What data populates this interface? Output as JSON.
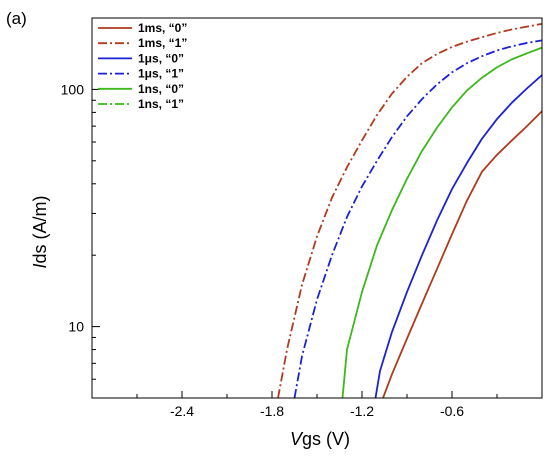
{
  "panel_label": "(a)",
  "chart_data": {
    "type": "line",
    "xlabel": {
      "italic": "V",
      "rest": "gs (V)"
    },
    "ylabel": {
      "italic": "I",
      "rest": "ds (A/m)"
    },
    "xlim": [
      -3.0,
      0.0
    ],
    "ylim": [
      5,
      200
    ],
    "yscale": "log",
    "grid": false,
    "legend_position": "top-left",
    "x_ticks": [
      -2.4,
      -1.8,
      -1.2,
      -0.6
    ],
    "x_tick_labels": [
      "-2.4",
      "-1.8",
      "-1.2",
      "-0.6"
    ],
    "y_ticks": [
      10,
      100
    ],
    "y_tick_labels": [
      "10",
      "100"
    ],
    "series": [
      {
        "name": "1ms, “0”",
        "color": "#b03a1e",
        "dash": "solid",
        "x": [
          -1.06,
          -1.0,
          -0.9,
          -0.8,
          -0.7,
          -0.6,
          -0.5,
          -0.4,
          -0.3,
          -0.2,
          -0.1,
          0.0
        ],
        "y": [
          5,
          6.3,
          8.9,
          12.5,
          17.5,
          24.5,
          34,
          45,
          53,
          61,
          70,
          81
        ]
      },
      {
        "name": "1ms, “1”",
        "color": "#b03a1e",
        "dash": "dashdot",
        "x": [
          -1.76,
          -1.7,
          -1.6,
          -1.5,
          -1.4,
          -1.3,
          -1.2,
          -1.1,
          -1.0,
          -0.9,
          -0.8,
          -0.7,
          -0.6,
          -0.5,
          -0.4,
          -0.3,
          -0.2,
          -0.1,
          0.0
        ],
        "y": [
          5,
          8,
          15,
          24,
          35,
          47,
          61,
          78,
          96,
          113,
          129,
          141,
          151,
          159,
          166,
          173,
          179,
          184,
          189
        ]
      },
      {
        "name": "1μs, “0”",
        "color": "#1a22d4",
        "dash": "solid",
        "x": [
          -1.11,
          -1.08,
          -1.0,
          -0.9,
          -0.8,
          -0.7,
          -0.6,
          -0.5,
          -0.4,
          -0.3,
          -0.2,
          -0.1,
          0.0
        ],
        "y": [
          5,
          6.5,
          9.5,
          14,
          20,
          28,
          38,
          49,
          62,
          75,
          88,
          101,
          115
        ]
      },
      {
        "name": "1μs, “1”",
        "color": "#1a22d4",
        "dash": "dashdot",
        "x": [
          -1.65,
          -1.6,
          -1.5,
          -1.4,
          -1.3,
          -1.2,
          -1.1,
          -1.0,
          -0.9,
          -0.8,
          -0.7,
          -0.6,
          -0.5,
          -0.4,
          -0.3,
          -0.2,
          -0.1,
          0.0
        ],
        "y": [
          5,
          7.5,
          13,
          20,
          29,
          39,
          50,
          63,
          77,
          91,
          105,
          118,
          129,
          138,
          146,
          152,
          157,
          161
        ]
      },
      {
        "name": "1ns, “0”",
        "color": "#3cb81a",
        "dash": "solid",
        "x": [
          -1.33,
          -1.3,
          -1.2,
          -1.1,
          -1.0,
          -0.9,
          -0.8,
          -0.7,
          -0.6,
          -0.5,
          -0.4,
          -0.3,
          -0.2,
          -0.1,
          0.0
        ],
        "y": [
          5,
          8,
          14,
          22,
          31,
          42,
          55,
          69,
          84,
          99,
          112,
          124,
          134,
          142,
          150
        ]
      },
      {
        "name": "1ns, “1”",
        "color": "#3cb81a",
        "dash": "dashdot",
        "x": [],
        "y": []
      }
    ]
  }
}
